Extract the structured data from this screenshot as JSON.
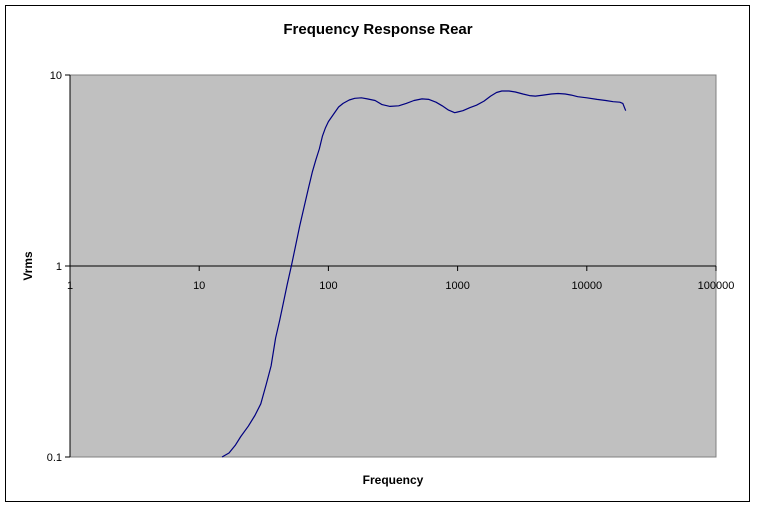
{
  "chart_data": {
    "type": "line",
    "title": "Frequency Response Rear",
    "xlabel": "Frequency",
    "ylabel": "Vrms",
    "x_scale": "log",
    "y_scale": "log",
    "xlim": [
      1,
      100000
    ],
    "ylim": [
      0.1,
      10
    ],
    "x_ticks": [
      1,
      10,
      100,
      1000,
      10000,
      100000
    ],
    "x_tick_labels": [
      "1",
      "10",
      "100",
      "1000",
      "10000",
      "100000"
    ],
    "y_ticks": [
      0.1,
      1,
      10
    ],
    "y_tick_labels": [
      "0.1",
      "1",
      "10"
    ],
    "grid": "major y only",
    "legend": "none",
    "colors": {
      "plot_area": "#c0c0c0",
      "line": "#000080",
      "axis": "#000000"
    },
    "series": [
      {
        "x": [
          15,
          17,
          19,
          21,
          24,
          27,
          30,
          33,
          36,
          39,
          42,
          45,
          48,
          52,
          56,
          60,
          65,
          70,
          75,
          80,
          85,
          90,
          95,
          100,
          110,
          120,
          130,
          145,
          160,
          180,
          200,
          230,
          260,
          300,
          350,
          400,
          460,
          530,
          600,
          680,
          760,
          850,
          950,
          1000,
          1100,
          1250,
          1400,
          1600,
          1800,
          2000,
          2200,
          2500,
          2800,
          3200,
          3600,
          4000,
          4600,
          5300,
          6000,
          6800,
          7600,
          8500,
          10000,
          12000,
          14000,
          16000,
          18000,
          19000,
          20000
        ],
        "y": [
          0.1,
          0.105,
          0.115,
          0.128,
          0.145,
          0.165,
          0.19,
          0.24,
          0.3,
          0.42,
          0.52,
          0.65,
          0.8,
          1.02,
          1.3,
          1.62,
          2.05,
          2.55,
          3.1,
          3.6,
          4.1,
          4.8,
          5.3,
          5.7,
          6.25,
          6.8,
          7.1,
          7.4,
          7.55,
          7.6,
          7.5,
          7.35,
          7.0,
          6.85,
          6.9,
          7.1,
          7.35,
          7.5,
          7.45,
          7.2,
          6.9,
          6.55,
          6.35,
          6.4,
          6.5,
          6.75,
          6.95,
          7.3,
          7.75,
          8.1,
          8.25,
          8.25,
          8.15,
          7.95,
          7.8,
          7.75,
          7.85,
          7.95,
          8.0,
          7.95,
          7.85,
          7.7,
          7.6,
          7.45,
          7.35,
          7.25,
          7.2,
          7.1,
          6.5
        ]
      }
    ]
  }
}
